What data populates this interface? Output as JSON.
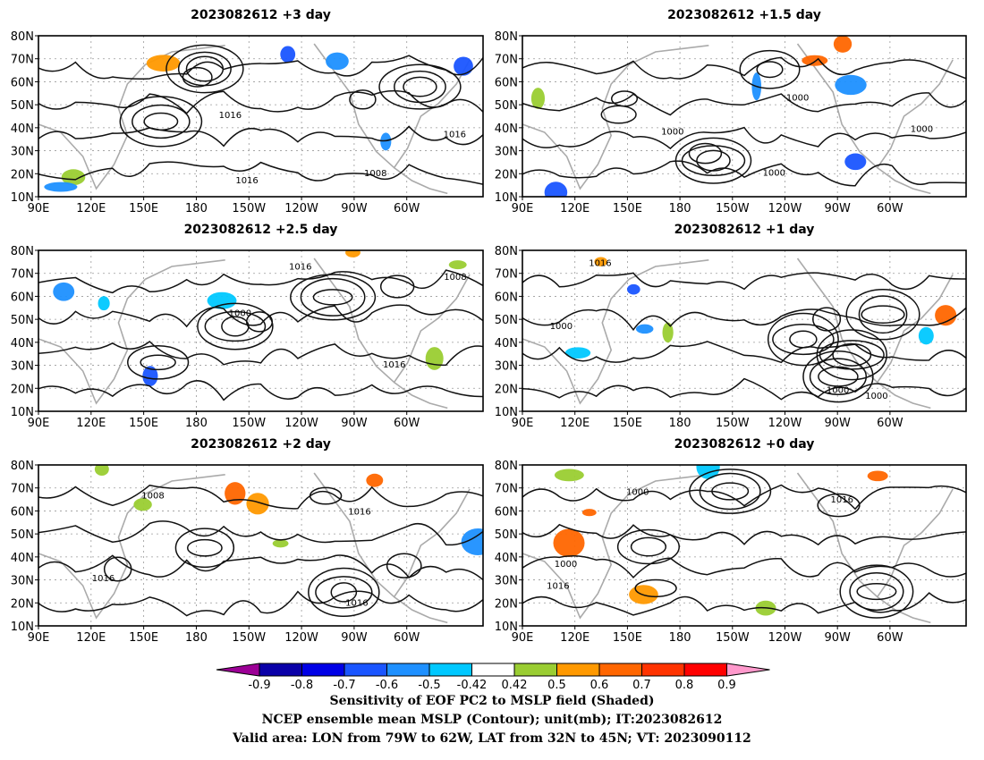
{
  "chart_data": {
    "type": "heatmap",
    "panels": [
      {
        "title": "2023082612  +3 day"
      },
      {
        "title": "2023082612  +1.5 day"
      },
      {
        "title": "2023082612  +2.5 day"
      },
      {
        "title": "2023082612  +1 day"
      },
      {
        "title": "2023082612  +2 day"
      },
      {
        "title": "2023082612  +0 day"
      }
    ],
    "x_ticks": [
      "90E",
      "120E",
      "150E",
      "180",
      "150W",
      "120W",
      "90W",
      "60W"
    ],
    "y_ticks": [
      "80N",
      "70N",
      "60N",
      "50N",
      "40N",
      "30N",
      "20N",
      "10N"
    ],
    "contour_labels": [
      "1000",
      "1008",
      "1016"
    ],
    "colorbar": {
      "ticks": [
        "-0.9",
        "-0.8",
        "-0.7",
        "-0.6",
        "-0.5",
        "-0.42",
        "0.42",
        "0.5",
        "0.6",
        "0.7",
        "0.8",
        "0.9"
      ],
      "colors": [
        "#9c0096",
        "#0a00a8",
        "#0000e6",
        "#1a55ff",
        "#1e90ff",
        "#00c8ff",
        "#ffffff",
        "#9acd32",
        "#ff9900",
        "#ff6600",
        "#ff3300",
        "#ff0000",
        "#ff99cc"
      ]
    },
    "caption": [
      "Sensitivity of EOF PC2 to MSLP field (Shaded)",
      "NCEP ensemble mean MSLP (Contour); unit(mb); IT:2023082612",
      "Valid area: LON from 79W to 62W, LAT from 32N to 45N; VT: 2023090112"
    ]
  }
}
